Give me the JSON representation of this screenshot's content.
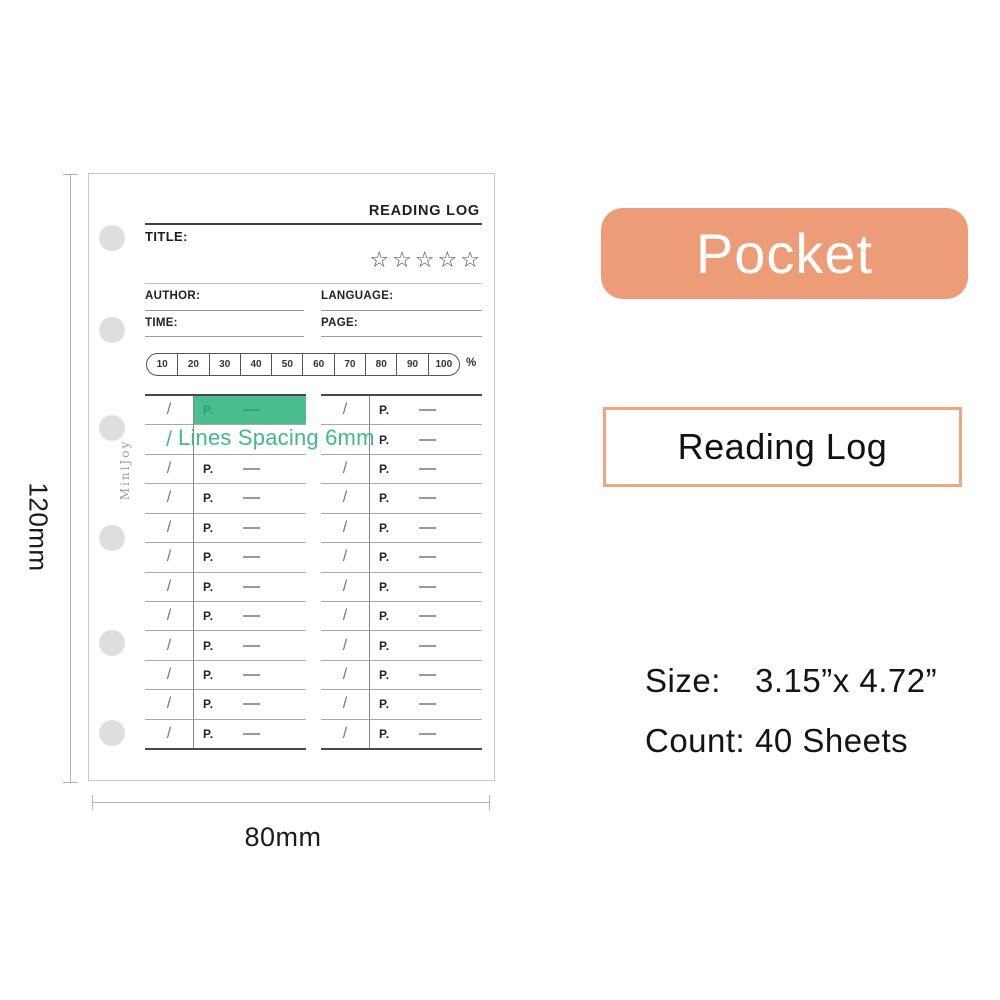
{
  "colors": {
    "accent": "#EC9C76",
    "accent_border": "#F0A480",
    "highlight_green": "#4ABE8E",
    "annotation_green": "#41BA8A"
  },
  "sheet": {
    "brand": "MiniJoy",
    "header_title": "READING LOG",
    "title_label": "TITLE:",
    "rating": {
      "star": "☆",
      "count": 5
    },
    "fields": {
      "author": "AUTHOR:",
      "language": "LANGUAGE:",
      "time": "TIME:",
      "page": "PAGE:"
    },
    "progress": {
      "ticks": [
        "10",
        "20",
        "30",
        "40",
        "50",
        "60",
        "70",
        "80",
        "90",
        "100"
      ],
      "unit": "%"
    },
    "log": {
      "row_count": 12,
      "slash": "/",
      "page_label": "P.",
      "columns": [
        {
          "id": "left",
          "highlight_row": 0,
          "annotation_row": 1
        },
        {
          "id": "right",
          "hidden_slash_row": 1
        }
      ]
    },
    "annotation": {
      "text": "Lines Spacing 6mm"
    }
  },
  "dimensions": {
    "height_label": "120mm",
    "width_label": "80mm"
  },
  "panel": {
    "size_badge": "Pocket",
    "type_badge": "Reading Log",
    "specs": [
      {
        "label": "Size:",
        "value": "3.15”x 4.72”"
      },
      {
        "label": "Count:",
        "value": "40 Sheets"
      }
    ]
  }
}
